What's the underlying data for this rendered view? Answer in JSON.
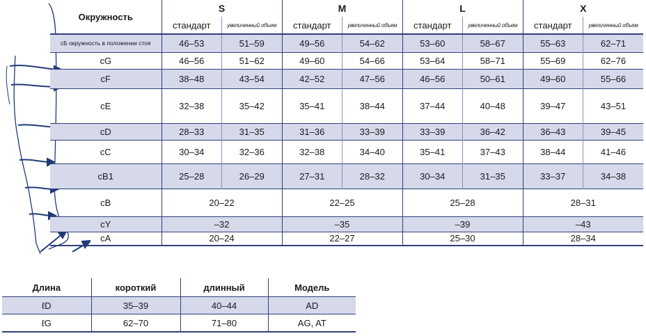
{
  "size_table": {
    "header_label": "Окружность",
    "sizes": [
      "S",
      "M",
      "L",
      "X"
    ],
    "subheaders": [
      "стандарт",
      "увеличенный объем"
    ],
    "rows": [
      {
        "label": "сБ окружность в положении стоя",
        "values": [
          "46–53",
          "51–59",
          "49–56",
          "54–62",
          "53–60",
          "58–67",
          "55–63",
          "62–71"
        ]
      },
      {
        "label": "cG",
        "values": [
          "46–56",
          "51–62",
          "49–60",
          "54–66",
          "53–64",
          "58–71",
          "55–69",
          "62–76"
        ]
      },
      {
        "label": "cF",
        "values": [
          "38–48",
          "43–54",
          "42–52",
          "47–56",
          "46–56",
          "50–61",
          "49–60",
          "55–66"
        ]
      },
      {
        "label": "cE",
        "values": [
          "32–38",
          "35–42",
          "35–41",
          "38–44",
          "37–44",
          "40–48",
          "39–47",
          "43–51"
        ]
      },
      {
        "label": "cD",
        "values": [
          "28–33",
          "31–35",
          "31–36",
          "33–39",
          "33–39",
          "36–42",
          "36–43",
          "39–45"
        ]
      },
      {
        "label": "cC",
        "values": [
          "30–34",
          "32–36",
          "32–38",
          "34–40",
          "35–41",
          "37–43",
          "38–44",
          "41–46"
        ]
      },
      {
        "label": "cB1",
        "values": [
          "25–28",
          "26–29",
          "27–31",
          "28–32",
          "30–34",
          "31–35",
          "33–37",
          "34–38"
        ]
      },
      {
        "label": "cB",
        "values": [
          "20–22",
          "22–25",
          "25–28",
          "28–31"
        ]
      },
      {
        "label": "cY",
        "values": [
          "–32",
          "–35",
          "–39",
          "–43"
        ]
      },
      {
        "label": "cA",
        "values": [
          "20–24",
          "22–27",
          "25–30",
          "28–34"
        ]
      }
    ]
  },
  "length_table": {
    "headers": [
      "Длина",
      "короткий",
      "длинный",
      "Модель"
    ],
    "rows": [
      {
        "label": "ℓD",
        "values": [
          "35–39",
          "40–44",
          "AD"
        ]
      },
      {
        "label": "ℓG",
        "values": [
          "62–70",
          "71–80",
          "AG, AT"
        ]
      }
    ]
  },
  "colors": {
    "line": "#2f3f78",
    "shade": "#d5d9ea",
    "arrow": "#1f3a78"
  }
}
